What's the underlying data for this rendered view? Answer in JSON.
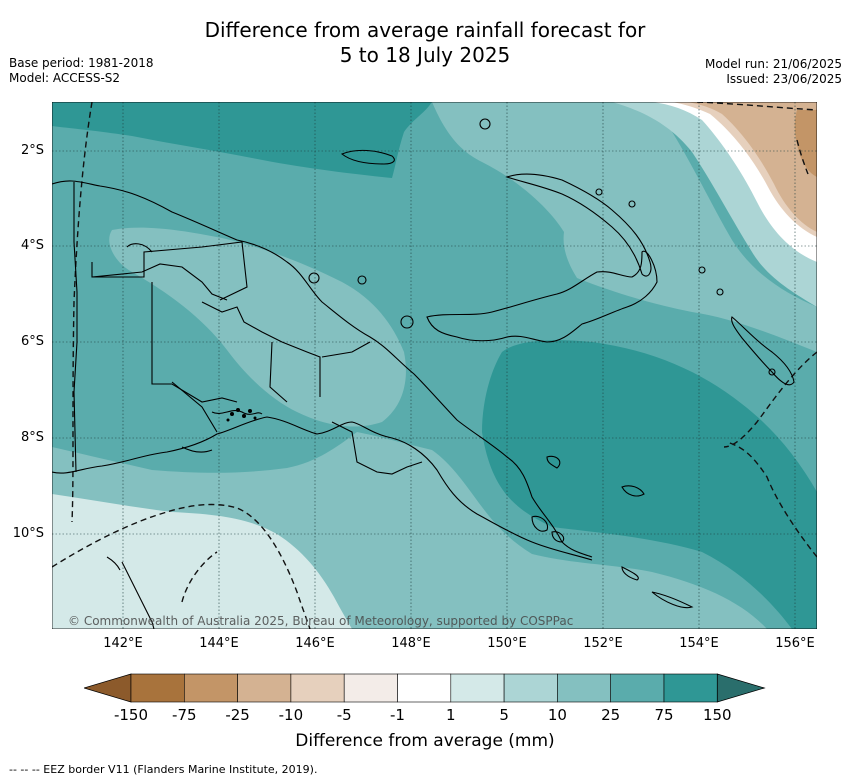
{
  "header": {
    "title_line1": "Difference from average rainfall forecast for",
    "title_line2": "5 to 18 July 2025",
    "base_period": "Base period: 1981-2018",
    "model": "Model: ACCESS-S2",
    "model_run": "Model run: 21/06/2025",
    "issued": "Issued: 23/06/2025"
  },
  "map": {
    "latitude_labels": [
      "2°S",
      "4°S",
      "6°S",
      "8°S",
      "10°S"
    ],
    "longitude_labels": [
      "142°E",
      "144°E",
      "146°E",
      "148°E",
      "150°E",
      "152°E",
      "154°E",
      "156°E"
    ],
    "credit": "© Commonwealth of Australia 2025, Bureau of Meteorology, supported by COSPPac"
  },
  "legend": {
    "ticks": [
      "-150",
      "-75",
      "-25",
      "-10",
      "-5",
      "-1",
      "1",
      "5",
      "10",
      "25",
      "75",
      "150"
    ],
    "colors": [
      "#8c5a2b",
      "#a8733c",
      "#c39567",
      "#d4b292",
      "#e6d0bd",
      "#f3ece8",
      "#ffffff",
      "#d4e9e8",
      "#acd5d5",
      "#84c0c0",
      "#5aacac",
      "#2f9795",
      "#2a6e6c"
    ],
    "title": "Difference from average (mm)"
  },
  "footnote": "--  --  -- EEZ border V11 (Flanders Marine Institute, 2019)."
}
